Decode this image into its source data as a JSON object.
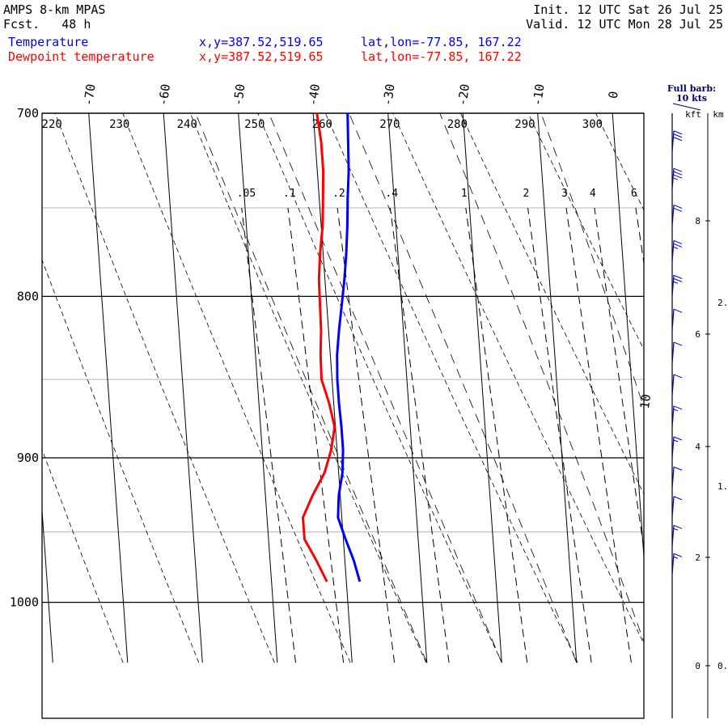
{
  "header": {
    "model": "AMPS 8-km MPAS",
    "fcst_label": "Fcst.",
    "fcst_value": "48 h",
    "init_label": "Init.",
    "init_value": "12 UTC Sat 26 Jul 25",
    "valid_label": "Valid.",
    "valid_value": "12 UTC Mon 28 Jul 25",
    "xy_text": "x,y=387.52,519.65",
    "latlon_text": "lat,lon=-77.85, 167.22"
  },
  "barb_key": {
    "line1": "Full barb:",
    "line2": "10 kts"
  },
  "height_axis": {
    "kft_label": "kft",
    "km_label": "km",
    "kft_ticks": [
      "8",
      "6",
      "4",
      "2",
      "0"
    ],
    "km_ticks": [
      "2.",
      "1.",
      "0."
    ]
  },
  "colors": {
    "temperature": "#0000ff",
    "dewpoint": "#ff0000",
    "grid": "#000000",
    "minor_isobar": "#b4b4b4"
  },
  "chart_data": {
    "type": "line",
    "subtype": "skew-T log-P sounding",
    "y_axis": {
      "label": "",
      "unit": "hPa",
      "scale": "log",
      "range": [
        1045,
        700
      ],
      "ticks": [
        700,
        800,
        900,
        1000
      ],
      "minor_isobars": [
        750,
        850,
        950
      ]
    },
    "isotherms": {
      "unit": "C",
      "labels": [
        "-70",
        "-60",
        "-50",
        "-40",
        "-30",
        "-20",
        "-10",
        "0",
        "10"
      ]
    },
    "dry_adiabats": {
      "unit": "K",
      "labels": [
        "220",
        "230",
        "240",
        "250",
        "260",
        "270",
        "280",
        "290",
        "300"
      ]
    },
    "mixing_ratio_lines": {
      "unit": "g/kg",
      "labels": [
        ".05",
        ".1",
        ".2",
        ".4",
        "1",
        "2",
        "3",
        "4",
        "6"
      ]
    },
    "series": [
      {
        "name": "Temperature",
        "unit": "C",
        "points": [
          {
            "p": 985,
            "t": -38.2
          },
          {
            "p": 970,
            "t": -38.8
          },
          {
            "p": 955,
            "t": -39.7
          },
          {
            "p": 940,
            "t": -40.5
          },
          {
            "p": 925,
            "t": -40.2
          },
          {
            "p": 910,
            "t": -39.5
          },
          {
            "p": 895,
            "t": -39.2
          },
          {
            "p": 880,
            "t": -39.2
          },
          {
            "p": 865,
            "t": -39.3
          },
          {
            "p": 850,
            "t": -39.3
          },
          {
            "p": 835,
            "t": -39.1
          },
          {
            "p": 820,
            "t": -38.6
          },
          {
            "p": 805,
            "t": -38.0
          },
          {
            "p": 790,
            "t": -37.4
          },
          {
            "p": 775,
            "t": -36.9
          },
          {
            "p": 760,
            "t": -36.5
          },
          {
            "p": 745,
            "t": -36.2
          },
          {
            "p": 730,
            "t": -35.8
          },
          {
            "p": 715,
            "t": -35.6
          },
          {
            "p": 700,
            "t": -35.4
          }
        ]
      },
      {
        "name": "Dewpoint temperature",
        "unit": "C",
        "points": [
          {
            "p": 985,
            "t": -42.6
          },
          {
            "p": 970,
            "t": -43.8
          },
          {
            "p": 955,
            "t": -45.2
          },
          {
            "p": 940,
            "t": -45.2
          },
          {
            "p": 925,
            "t": -43.7
          },
          {
            "p": 910,
            "t": -41.9
          },
          {
            "p": 895,
            "t": -40.8
          },
          {
            "p": 880,
            "t": -40.1
          },
          {
            "p": 865,
            "t": -40.6
          },
          {
            "p": 850,
            "t": -41.4
          },
          {
            "p": 835,
            "t": -41.3
          },
          {
            "p": 820,
            "t": -41.0
          },
          {
            "p": 805,
            "t": -40.9
          },
          {
            "p": 790,
            "t": -40.8
          },
          {
            "p": 775,
            "t": -40.4
          },
          {
            "p": 760,
            "t": -39.8
          },
          {
            "p": 745,
            "t": -39.5
          },
          {
            "p": 730,
            "t": -39.2
          },
          {
            "p": 715,
            "t": -39.2
          },
          {
            "p": 700,
            "t": -39.5
          }
        ]
      }
    ],
    "wind_profile": {
      "unit": "kts",
      "levels_hPa": [
        980,
        960,
        940,
        920,
        900,
        880,
        860,
        840,
        820,
        800,
        780,
        760,
        740,
        720
      ],
      "speeds_kts": [
        5,
        5,
        10,
        10,
        5,
        5,
        10,
        10,
        10,
        15,
        15,
        20,
        25,
        30
      ]
    }
  }
}
